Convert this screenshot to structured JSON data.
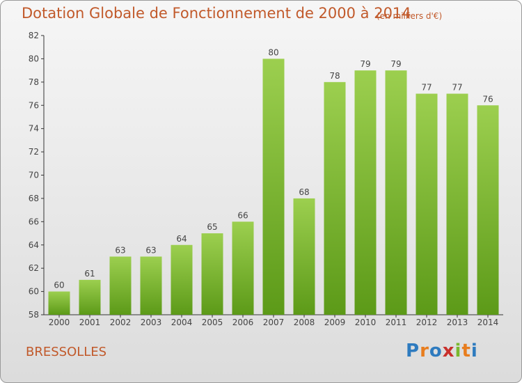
{
  "header": {
    "title": "Dotation Globale de Fonctionnement de 2000 à 2014",
    "subtitle": "(en milliers d'€)"
  },
  "footer": {
    "commune": "BRESSOLLES",
    "logo_text": "Proxiti",
    "logo_colors": [
      "#2e7bbf",
      "#e87d1e",
      "#2e7bbf",
      "#c9302c",
      "#7ab82e",
      "#e87d1e",
      "#2e7bbf"
    ]
  },
  "colors": {
    "bar_top": "#9ccf4f",
    "bar_bottom": "#5c9a18",
    "axis": "#333333",
    "grid": "#bbbbbb"
  },
  "chart_data": {
    "type": "bar",
    "title": "Dotation Globale de Fonctionnement de 2000 à 2014",
    "subtitle": "(en milliers d'€)",
    "xlabel": "",
    "ylabel": "",
    "categories": [
      "2000",
      "2001",
      "2002",
      "2003",
      "2004",
      "2005",
      "2006",
      "2007",
      "2008",
      "2009",
      "2010",
      "2011",
      "2012",
      "2013",
      "2014"
    ],
    "values": [
      60,
      61,
      63,
      63,
      64,
      65,
      66,
      80,
      68,
      78,
      79,
      79,
      77,
      77,
      76
    ],
    "ylim": [
      58,
      82
    ],
    "yticks": [
      58,
      60,
      62,
      64,
      66,
      68,
      70,
      72,
      74,
      76,
      78,
      80,
      82
    ],
    "grid": false,
    "legend": "none"
  }
}
